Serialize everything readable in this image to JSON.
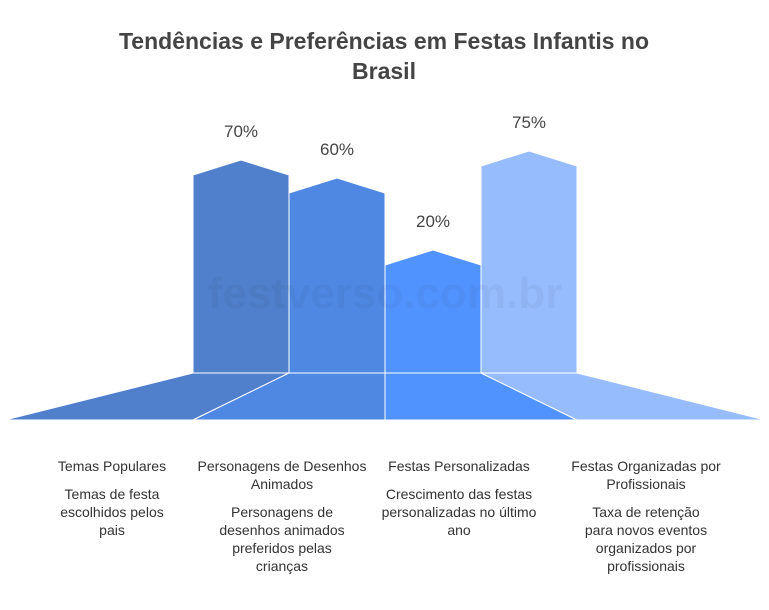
{
  "chart_data": {
    "type": "bar",
    "title": "Tendências e Preferências em Festas Infantis no Brasil",
    "watermark": "festverso.com.br",
    "categories": [
      "Temas Populares",
      "Personagens de Desenhos Animados",
      "Festas Personalizadas",
      "Festas Organizadas por Profissionais"
    ],
    "values": [
      70,
      60,
      20,
      75
    ],
    "value_labels": [
      "70%",
      "60%",
      "20%",
      "75%"
    ],
    "descriptions": [
      "Temas de festa escolhidos pelos pais",
      "Personagens de desenhos animados preferidos pelas crianças",
      "Crescimento das festas personalizadas no último ano",
      "Taxa de retenção para novos eventos organizados por profissionais"
    ],
    "colors": [
      "#5080cc",
      "#4f88e3",
      "#5193fe",
      "#96bcfd"
    ],
    "xlabel": "",
    "ylabel": "",
    "ylim": [
      0,
      100
    ]
  }
}
